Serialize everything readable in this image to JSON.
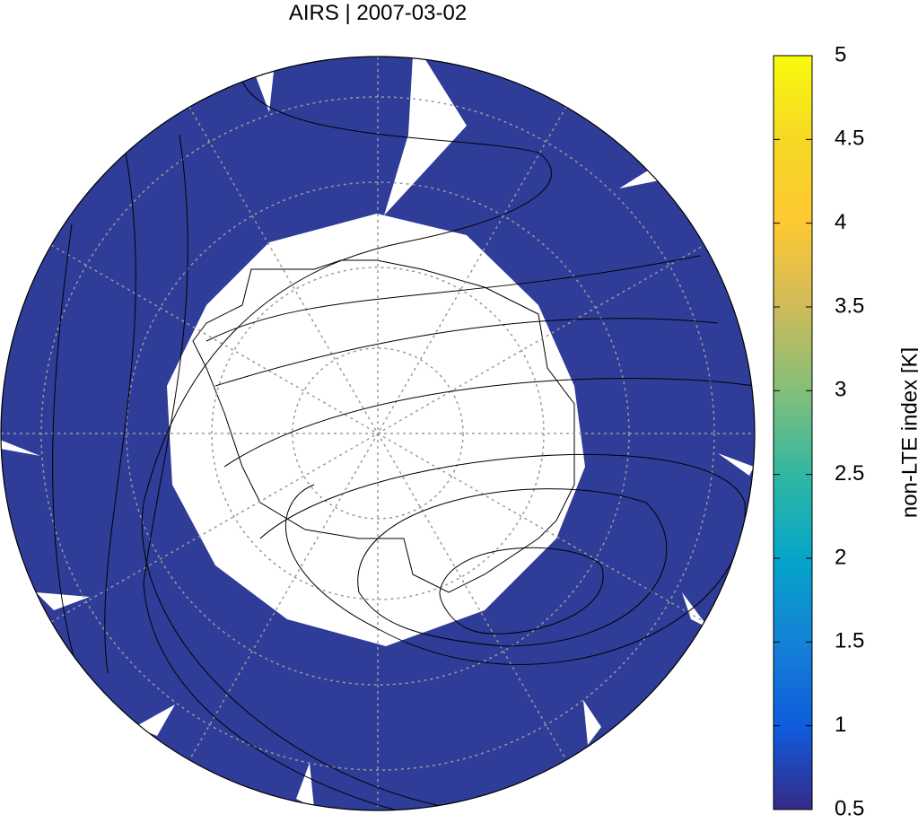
{
  "chart_data": {
    "type": "map",
    "title": "AIRS | 2007-03-02",
    "colorbar_label": "non-LTE index [K]",
    "clim": [
      0.5,
      5
    ],
    "cticks": [
      0.5,
      1,
      1.5,
      2,
      2.5,
      3,
      3.5,
      4,
      4.5,
      5
    ]
  }
}
